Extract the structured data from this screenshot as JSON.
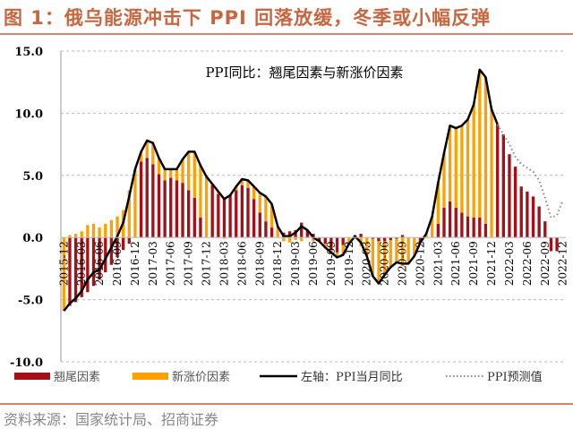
{
  "title": "图 1：俄乌能源冲击下 PPI 回落放缓，冬季或小幅反弹",
  "source": "资料来源：国家统计局、招商证券",
  "colors": {
    "carry": "#a50f15",
    "new": "#ffa000",
    "line": "#000000",
    "forecast": "#888888",
    "title": "#c9663f"
  },
  "chart_data": {
    "type": "bar",
    "title": "PPI同比：翘尾因素与新涨价因素",
    "xlabel": "",
    "ylabel": "",
    "ylim": [
      -10,
      15
    ],
    "yticks": [
      "15.0",
      "10.0",
      "5.0",
      "0.0",
      "-5.0",
      "-10.0"
    ],
    "ytick_values": [
      15,
      10,
      5,
      0,
      -5,
      -10
    ],
    "grid": true,
    "legend_position": "bottom",
    "legend": [
      "翘尾因素",
      "新涨价因素",
      "左轴：PPI当月同比",
      "PPI预测值"
    ],
    "start_month": "2015-12",
    "xtick_labels": [
      "2015-12",
      "2016-03",
      "2016-06",
      "2016-09",
      "2016-12",
      "2017-03",
      "2017-06",
      "2017-09",
      "2017-12",
      "2018-03",
      "2018-06",
      "2018-09",
      "2018-12",
      "2019-03",
      "2019-06",
      "2019-09",
      "2019-12",
      "2020-03",
      "2020-06",
      "2020-09",
      "2020-12",
      "2021-03",
      "2021-06",
      "2021-09",
      "2021-12",
      "2022-03",
      "2022-06",
      "2022-09",
      "2022-12"
    ],
    "series": [
      {
        "name": "翘尾因素",
        "type": "bar",
        "values": [
          0,
          -5.5,
          -5.2,
          -4.8,
          -4.4,
          -3.9,
          -3.4,
          -2.8,
          -2.2,
          -1.6,
          -1.0,
          -0.5,
          0,
          6.1,
          6.4,
          5.9,
          5.1,
          4.6,
          4.8,
          4.6,
          4.4,
          3.8,
          3.2,
          1.6,
          0,
          4.2,
          3.5,
          3.2,
          3.4,
          3.8,
          4.2,
          4.0,
          3.1,
          2.0,
          1.3,
          0.8,
          0,
          0.4,
          0.5,
          0.6,
          1.2,
          0.6,
          0.3,
          -0.3,
          -0.5,
          -1.0,
          -1.2,
          -0.6,
          0,
          0.2,
          0.3,
          0,
          -0.1,
          -0.3,
          -0.3,
          -0.2,
          -0.1,
          0.2,
          0,
          0,
          -0.4,
          0,
          0,
          1.1,
          2.4,
          2.9,
          2.4,
          2.0,
          1.7,
          1.6,
          1.6,
          1.1,
          0,
          9.1,
          8.3,
          6.7,
          5.7,
          4.1,
          3.7,
          3.3,
          2.5,
          1.3,
          -1.1,
          -1.1,
          0
        ]
      },
      {
        "name": "新涨价因素",
        "type": "bar",
        "values": [
          -5.9,
          0.2,
          0.3,
          0.5,
          1.0,
          1.1,
          0.8,
          1.1,
          1.4,
          1.7,
          2.2,
          3.8,
          5.5,
          0.8,
          1.4,
          1.7,
          1.3,
          0.9,
          0.7,
          0.9,
          1.9,
          3.1,
          3.7,
          4.2,
          4.9,
          0.1,
          0.2,
          -0.1,
          0,
          0.3,
          0.5,
          0.6,
          1.0,
          1.6,
          2.0,
          1.9,
          0.9,
          -0.3,
          -0.4,
          -0.2,
          -0.3,
          0,
          -0.3,
          0,
          -0.3,
          -0.2,
          -0.4,
          -0.8,
          -0.5,
          -0.1,
          -0.7,
          -1.5,
          -3.0,
          -3.4,
          -2.7,
          -2.2,
          -1.9,
          -2.3,
          -2.1,
          -1.5,
          0,
          0.3,
          1.7,
          3.3,
          4.4,
          6.1,
          6.4,
          7.0,
          7.8,
          9.1,
          11.9,
          11.8,
          10.3,
          0,
          0,
          0,
          0,
          0,
          0,
          0,
          0,
          0,
          0,
          0,
          0
        ]
      },
      {
        "name": "左轴：PPI当月同比",
        "type": "line",
        "values": [
          -5.9,
          -5.3,
          -4.9,
          -4.3,
          -3.4,
          -2.8,
          -2.6,
          -1.7,
          -0.8,
          0.1,
          1.2,
          3.3,
          5.5,
          6.9,
          7.8,
          7.6,
          6.4,
          5.5,
          5.5,
          5.5,
          6.3,
          6.9,
          6.9,
          5.8,
          4.9,
          4.3,
          3.7,
          3.1,
          3.4,
          4.1,
          4.7,
          4.6,
          4.1,
          3.6,
          3.3,
          2.7,
          0.9,
          0.1,
          0.1,
          0.4,
          0.9,
          0.6,
          0.0,
          -0.3,
          -0.8,
          -1.2,
          -1.6,
          -1.4,
          -0.5,
          0.1,
          -0.4,
          -1.5,
          -3.1,
          -3.7,
          -3.0,
          -2.4,
          -2.0,
          -2.1,
          -2.1,
          -1.5,
          -0.4,
          0.3,
          1.7,
          4.4,
          6.8,
          9.0,
          8.8,
          9.0,
          9.5,
          10.7,
          13.5,
          12.9,
          10.3,
          9.1
        ]
      },
      {
        "name": "PPI预测值",
        "type": "line-dotted",
        "start_month": "2022-01",
        "values": [
          9.1,
          8.3,
          7.5,
          6.5,
          5.9,
          5.6,
          5.3,
          4.6,
          3.2,
          1.6,
          1.8,
          3.0
        ]
      }
    ]
  }
}
